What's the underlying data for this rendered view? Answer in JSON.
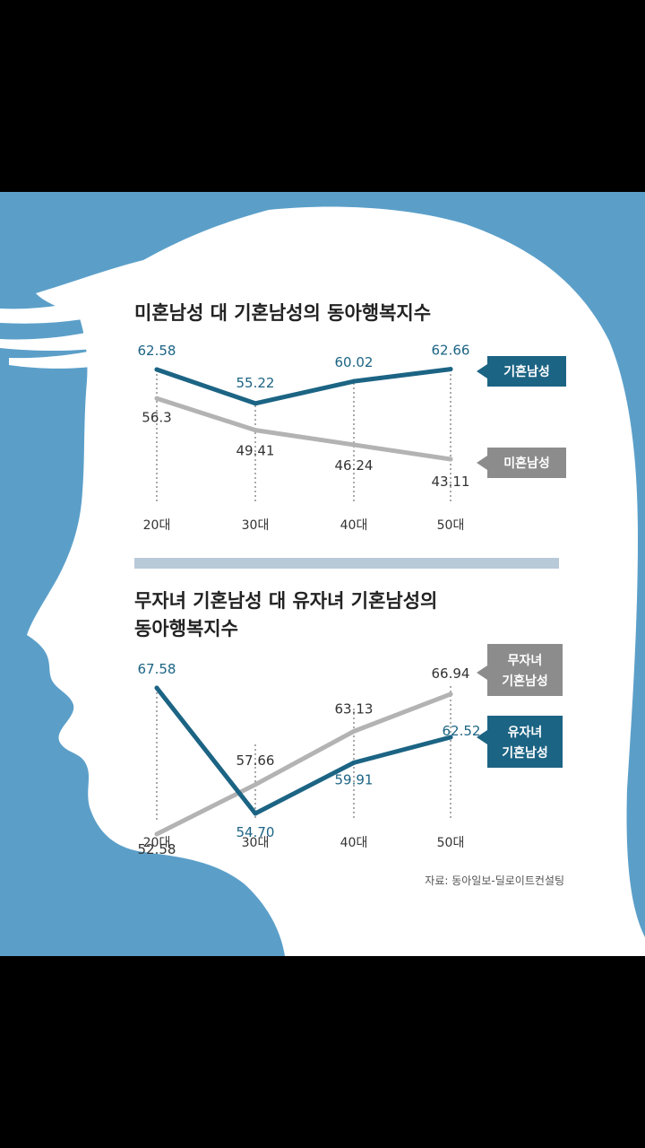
{
  "colors": {
    "background": "#000000",
    "panel": "#5b9fc9",
    "head": "#ffffff",
    "married_line": "#1c6484",
    "unmarried_line": "#b3b3b3",
    "divider": "#b8c9d8"
  },
  "source": "자료: 동아일보-딜로이트컨설팅",
  "chart_data": [
    {
      "type": "line",
      "title": "미혼남성 대 기혼남성의 동아행복지수",
      "categories": [
        "20대",
        "30대",
        "40대",
        "50대"
      ],
      "series": [
        {
          "name": "기혼남성",
          "values": [
            62.58,
            55.22,
            60.02,
            62.66
          ],
          "labels": [
            "62.58",
            "55.22",
            "60.02",
            "62.66"
          ]
        },
        {
          "name": "미혼남성",
          "values": [
            56.3,
            49.41,
            46.24,
            43.11
          ],
          "labels": [
            "56.3",
            "49.41",
            "46.24",
            "43.11"
          ]
        }
      ]
    },
    {
      "type": "line",
      "title": "무자녀 기혼남성 대 유자녀 기혼남성의",
      "title_line2": "동아행복지수",
      "categories": [
        "20대",
        "30대",
        "40대",
        "50대"
      ],
      "series": [
        {
          "name": "무자녀 기혼남성",
          "name_lines": [
            "무자녀",
            "기혼남성"
          ],
          "values": [
            52.58,
            57.66,
            63.13,
            66.94
          ],
          "labels": [
            "52.58",
            "57.66",
            "63.13",
            "66.94"
          ]
        },
        {
          "name": "유자녀 기혼남성",
          "name_lines": [
            "유자녀",
            "기혼남성"
          ],
          "values": [
            67.58,
            54.7,
            59.91,
            62.52
          ],
          "labels": [
            "67.58",
            "54.70",
            "59.91",
            "62.52"
          ]
        }
      ]
    }
  ]
}
